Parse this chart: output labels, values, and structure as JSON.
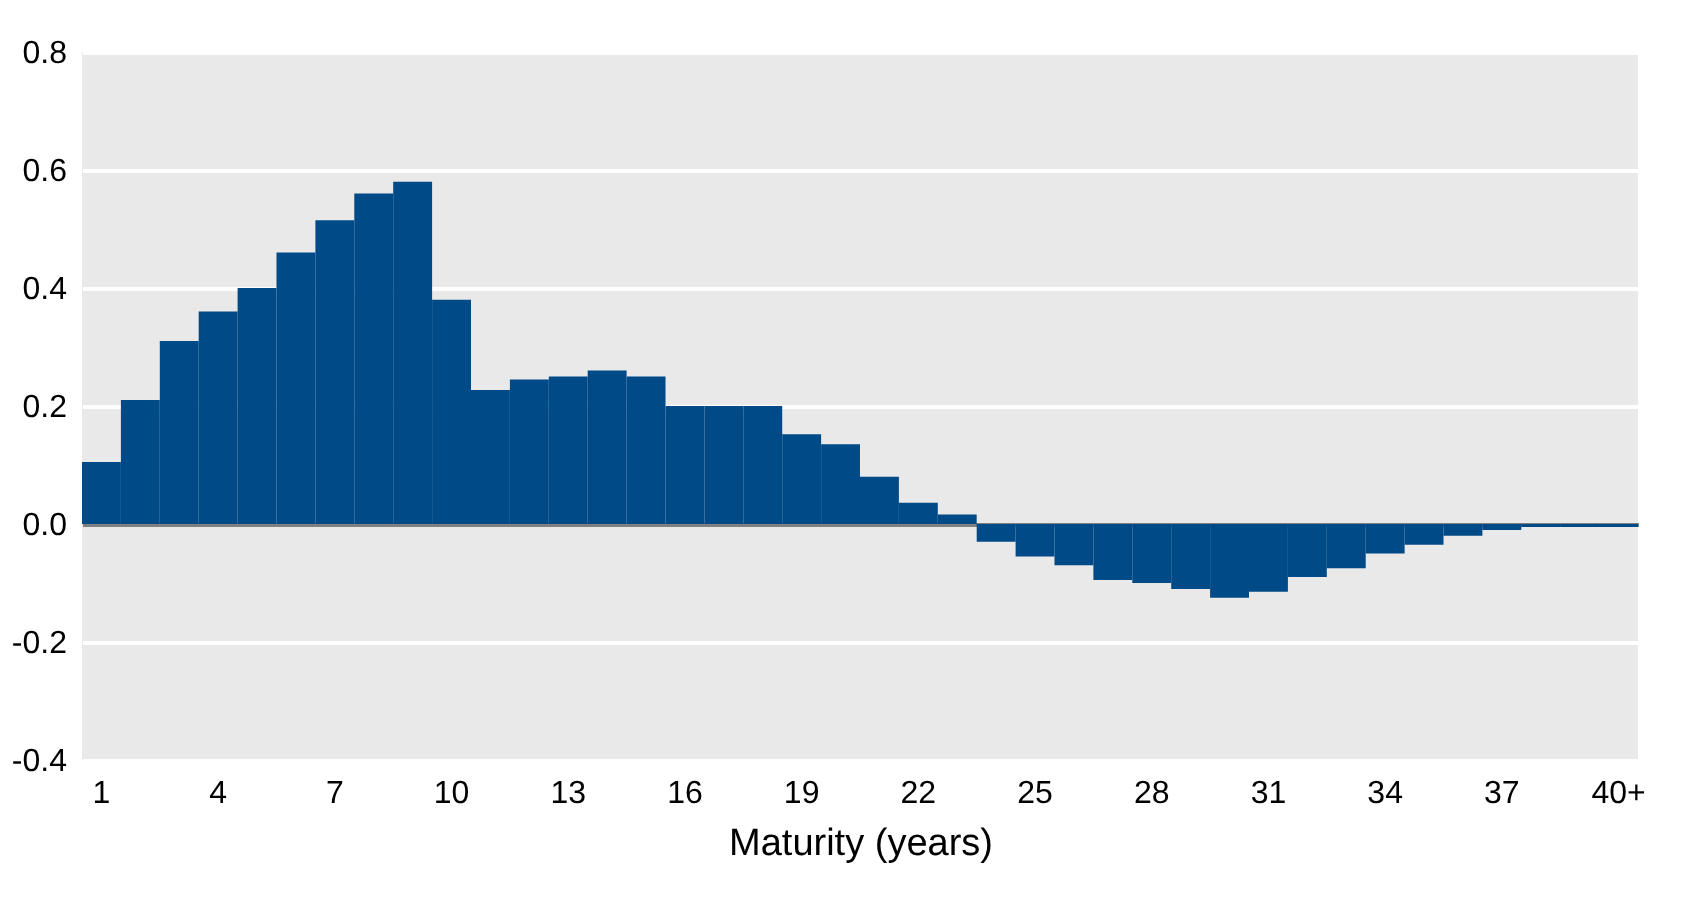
{
  "chart_data": {
    "type": "bar",
    "xlabel": "Maturity (years)",
    "categories": [
      "1",
      null,
      null,
      "4",
      null,
      null,
      "7",
      null,
      null,
      "10",
      null,
      null,
      "13",
      null,
      null,
      "16",
      null,
      null,
      "19",
      null,
      null,
      "22",
      null,
      null,
      "25",
      null,
      null,
      "28",
      null,
      null,
      "31",
      null,
      null,
      "34",
      null,
      null,
      "37",
      null,
      null,
      "40+"
    ],
    "values": [
      0.105,
      0.21,
      0.31,
      0.36,
      0.4,
      0.46,
      0.515,
      0.56,
      0.58,
      0.38,
      0.227,
      0.245,
      0.25,
      0.26,
      0.25,
      0.2,
      0.2,
      0.2,
      0.152,
      0.135,
      0.08,
      0.036,
      0.016,
      -0.03,
      -0.055,
      -0.07,
      -0.095,
      -0.1,
      -0.11,
      -0.125,
      -0.115,
      -0.09,
      -0.075,
      -0.05,
      -0.035,
      -0.02,
      -0.01,
      -0.005,
      -0.005,
      -0.005
    ],
    "color": "#004a87",
    "ylim": [
      -0.4,
      0.8
    ],
    "yticks": [
      {
        "value": -0.4,
        "label": "-0.4"
      },
      {
        "value": -0.2,
        "label": "-0.2"
      },
      {
        "value": 0,
        "label": "0.0"
      },
      0.2,
      0.4,
      0.6,
      0.8
    ],
    "grid": "y"
  }
}
